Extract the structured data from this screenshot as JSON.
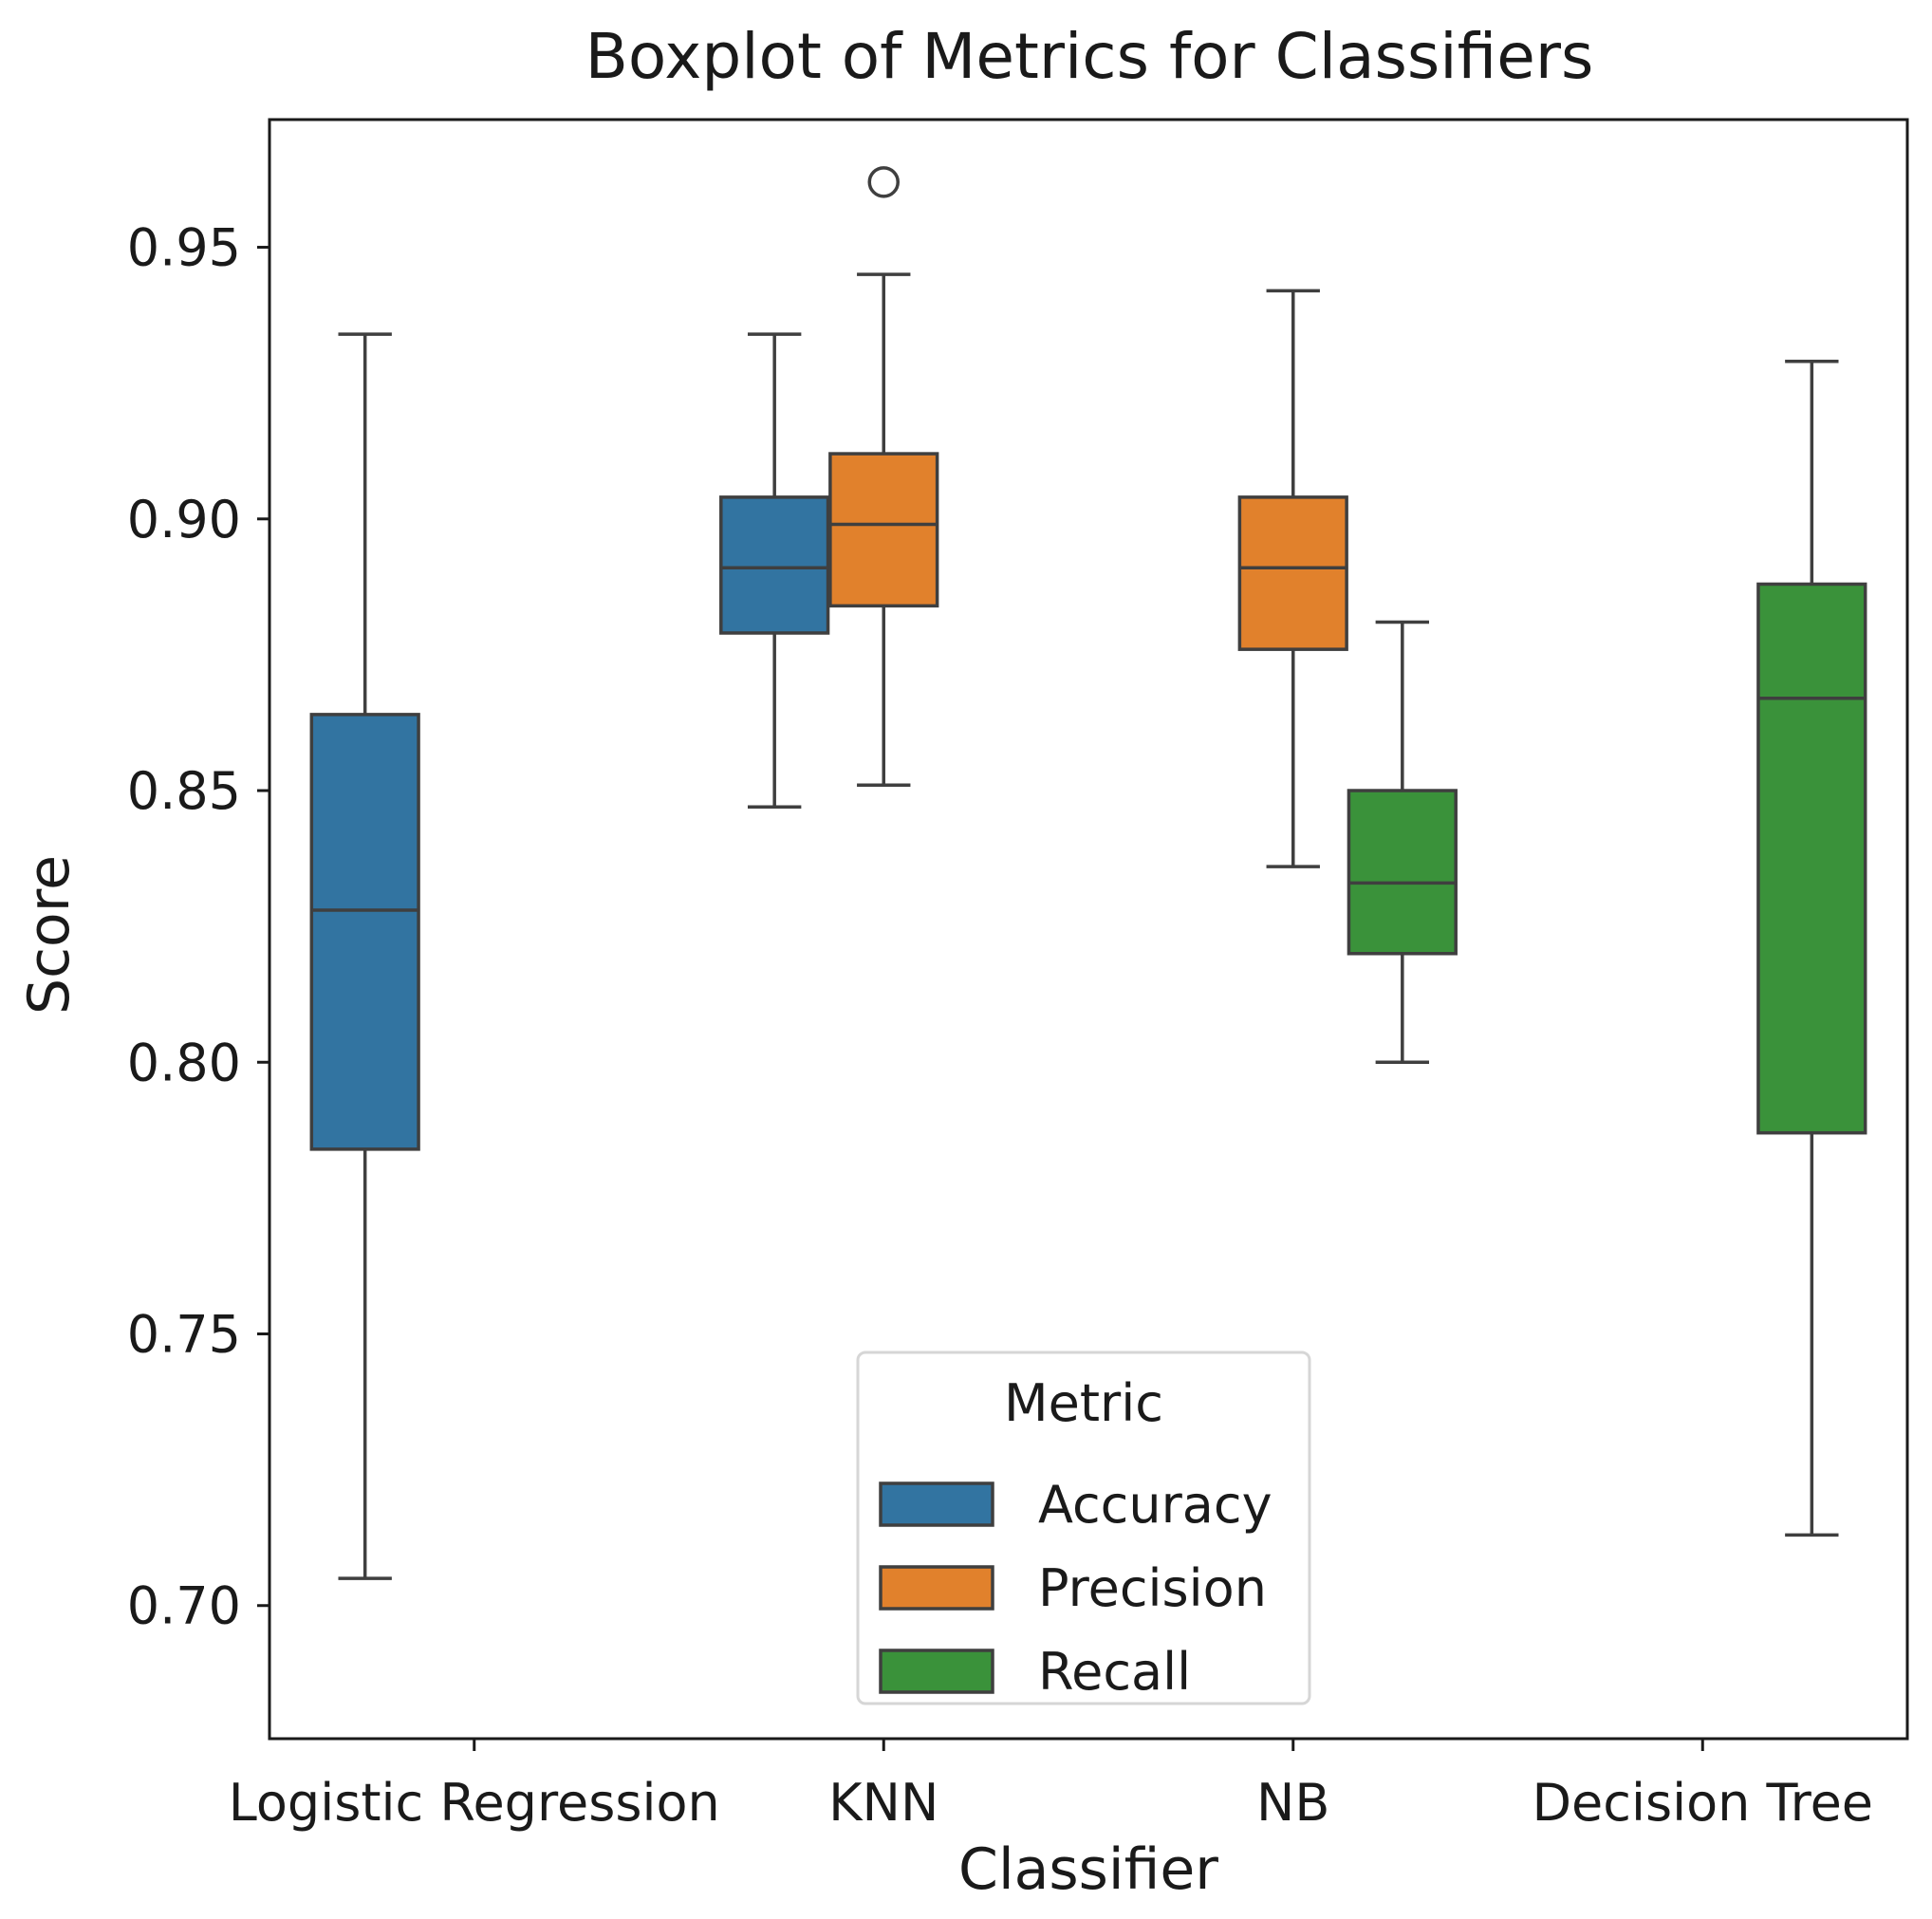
{
  "chart_data": {
    "type": "boxplot",
    "title": "Boxplot of Metrics for Classifiers",
    "xlabel": "Classifier",
    "ylabel": "Score",
    "ylim": [
      0.6755,
      0.9735
    ],
    "yticks": [
      0.7,
      0.75,
      0.8,
      0.85,
      0.9,
      0.95
    ],
    "ytick_labels": [
      "0.70",
      "0.75",
      "0.80",
      "0.85",
      "0.90",
      "0.95"
    ],
    "categories": [
      "Logistic Regression",
      "KNN",
      "NB",
      "Decision Tree"
    ],
    "grid": false,
    "legend": {
      "title": "Metric",
      "placement": "lower-center",
      "entries": [
        {
          "name": "Accuracy",
          "color": "#3274a1"
        },
        {
          "name": "Precision",
          "color": "#e1812c"
        },
        {
          "name": "Recall",
          "color": "#3a923a"
        }
      ]
    },
    "series": [
      {
        "name": "Accuracy",
        "color": "#3274a1",
        "boxes": [
          {
            "category": "Logistic Regression",
            "whisker_low": 0.705,
            "q1": 0.784,
            "median": 0.828,
            "q3": 0.864,
            "whisker_high": 0.934,
            "outliers": []
          },
          {
            "category": "KNN",
            "whisker_low": 0.847,
            "q1": 0.879,
            "median": 0.891,
            "q3": 0.904,
            "whisker_high": 0.934,
            "outliers": []
          },
          null,
          null
        ]
      },
      {
        "name": "Precision",
        "color": "#e1812c",
        "boxes": [
          null,
          {
            "category": "KNN",
            "whisker_low": 0.851,
            "q1": 0.884,
            "median": 0.899,
            "q3": 0.912,
            "whisker_high": 0.945,
            "outliers": [
              0.962
            ]
          },
          {
            "category": "NB",
            "whisker_low": 0.836,
            "q1": 0.876,
            "median": 0.891,
            "q3": 0.904,
            "whisker_high": 0.942,
            "outliers": []
          },
          null
        ]
      },
      {
        "name": "Recall",
        "color": "#3a923a",
        "boxes": [
          null,
          null,
          {
            "category": "NB",
            "whisker_low": 0.8,
            "q1": 0.82,
            "median": 0.833,
            "q3": 0.85,
            "whisker_high": 0.881,
            "outliers": []
          },
          {
            "category": "Decision Tree",
            "whisker_low": 0.713,
            "q1": 0.787,
            "median": 0.867,
            "q3": 0.888,
            "whisker_high": 0.929,
            "outliers": []
          }
        ]
      }
    ]
  }
}
